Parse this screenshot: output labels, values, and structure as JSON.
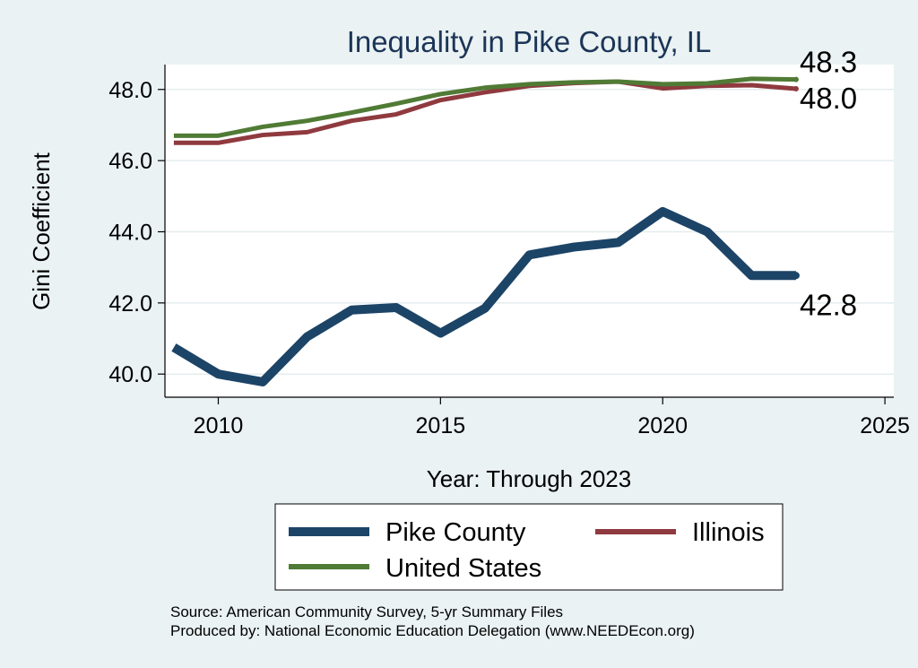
{
  "chart_data": {
    "type": "line",
    "title": "Inequality in Pike County, IL",
    "xlabel": "Year: Through 2023",
    "ylabel": "Gini Coefficient",
    "xlim": [
      2008.8,
      2025.2
    ],
    "ylim": [
      39.35,
      48.7
    ],
    "xticks": [
      2010,
      2015,
      2020,
      2025
    ],
    "xtick_labels": [
      "2010",
      "2015",
      "2020",
      "2025"
    ],
    "yticks": [
      40,
      42,
      44,
      46,
      48
    ],
    "ytick_labels": [
      "40.0",
      "42.0",
      "44.0",
      "46.0",
      "48.0"
    ],
    "grid": true,
    "legend_position": "bottom",
    "series": [
      {
        "name": "Pike County",
        "color": "#1c4467",
        "x": [
          2009,
          2010,
          2011,
          2012,
          2013,
          2014,
          2015,
          2016,
          2017,
          2018,
          2019,
          2020,
          2021,
          2022,
          2023
        ],
        "values": [
          40.75,
          40.0,
          39.78,
          41.05,
          41.8,
          41.87,
          41.15,
          41.85,
          43.35,
          43.57,
          43.7,
          44.57,
          44.0,
          42.77,
          42.77
        ],
        "end_label": "42.8"
      },
      {
        "name": "Illinois",
        "color": "#8f3a3f",
        "x": [
          2009,
          2010,
          2011,
          2012,
          2013,
          2014,
          2015,
          2016,
          2017,
          2018,
          2019,
          2020,
          2021,
          2022,
          2023
        ],
        "values": [
          46.5,
          46.5,
          46.72,
          46.8,
          47.12,
          47.3,
          47.7,
          47.92,
          48.1,
          48.18,
          48.22,
          48.03,
          48.1,
          48.12,
          48.02
        ],
        "end_label": "48.0"
      },
      {
        "name": "United States",
        "color": "#507b35",
        "x": [
          2009,
          2010,
          2011,
          2012,
          2013,
          2014,
          2015,
          2016,
          2017,
          2018,
          2019,
          2020,
          2021,
          2022,
          2023
        ],
        "values": [
          46.7,
          46.7,
          46.95,
          47.12,
          47.35,
          47.6,
          47.87,
          48.05,
          48.15,
          48.2,
          48.22,
          48.15,
          48.17,
          48.3,
          48.28
        ],
        "end_label": "48.3"
      }
    ],
    "legend": [
      "Pike County",
      "Illinois",
      "United States"
    ],
    "source_lines": [
      "Source: American Community Survey, 5-yr Summary Files",
      "Produced by: National Economic Education Delegation (www.NEEDEcon.org)"
    ]
  }
}
